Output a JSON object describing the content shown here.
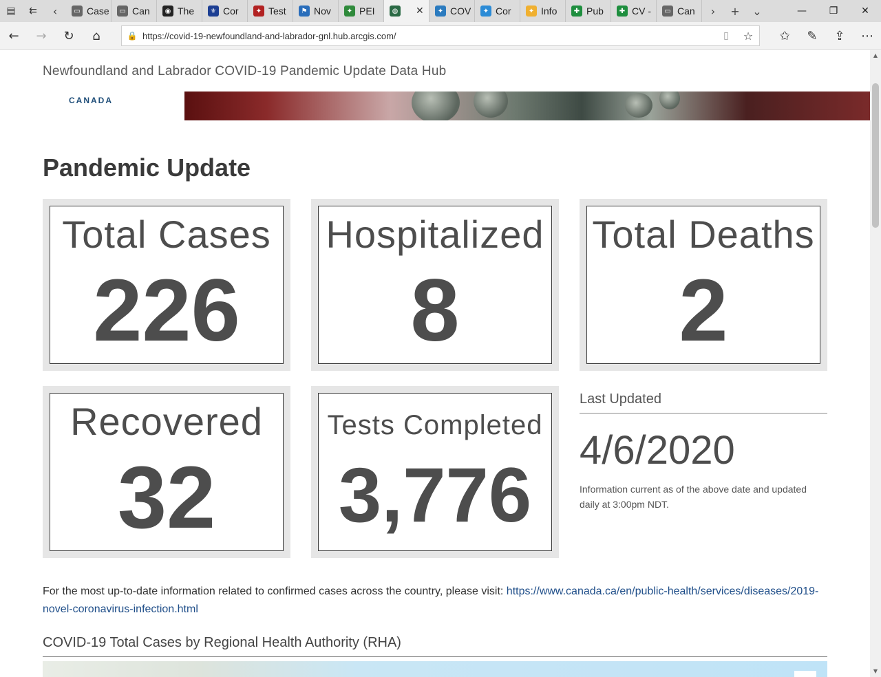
{
  "browser": {
    "tabs": [
      {
        "title": "Case",
        "icon": "page-icon",
        "color": "#666666"
      },
      {
        "title": "Can",
        "icon": "page-icon",
        "color": "#666666"
      },
      {
        "title": "The",
        "icon": "shield-icon",
        "color": "#222222"
      },
      {
        "title": "Cor",
        "icon": "fleur-de-lis-icon",
        "color": "#1d3f93"
      },
      {
        "title": "Test",
        "icon": "logo-icon",
        "color": "#b22222"
      },
      {
        "title": "Nov",
        "icon": "flag-icon",
        "color": "#2a6ebb"
      },
      {
        "title": "PEI",
        "icon": "logo-icon",
        "color": "#2f8a3b"
      },
      {
        "title": "",
        "icon": "globe-icon",
        "color": "#2b6a45",
        "active": true
      },
      {
        "title": "COV",
        "icon": "logo-icon",
        "color": "#2b7bbf"
      },
      {
        "title": "Cor",
        "icon": "logo-icon",
        "color": "#2b8bd6"
      },
      {
        "title": "Info",
        "icon": "logo-icon",
        "color": "#f0b030"
      },
      {
        "title": "Pub",
        "icon": "plus-icon",
        "color": "#1e8e3e"
      },
      {
        "title": "CV -",
        "icon": "plus-icon",
        "color": "#1e8e3e"
      },
      {
        "title": "Can",
        "icon": "page-icon",
        "color": "#666666"
      }
    ],
    "url": "https://covid-19-newfoundland-and-labrador-gnl.hub.arcgis.com/"
  },
  "header": {
    "hub_title": "Newfoundland and Labrador COVID-19 Pandemic Update Data Hub",
    "logo_text": "CANADA"
  },
  "section": {
    "title": "Pandemic Update"
  },
  "cards": {
    "total_cases": {
      "label": "Total Cases",
      "value": "226"
    },
    "hospitalized": {
      "label": "Hospitalized",
      "value": "8"
    },
    "total_deaths": {
      "label": "Total Deaths",
      "value": "2"
    },
    "recovered": {
      "label": "Recovered",
      "value": "32"
    },
    "tests_completed": {
      "label": "Tests Completed",
      "value": "3,776"
    }
  },
  "last_updated": {
    "label": "Last Updated",
    "date": "4/6/2020",
    "note": "Information current as of the above date and updated daily at 3:00pm NDT."
  },
  "info": {
    "text": "For the most up-to-date information related to confirmed cases across the country, please visit: ",
    "link": "https://www.canada.ca/en/public-health/services/diseases/2019-novel-coronavirus-infection.html"
  },
  "rha": {
    "title": "COVID-19 Total Cases by Regional Health Authority (RHA)"
  }
}
